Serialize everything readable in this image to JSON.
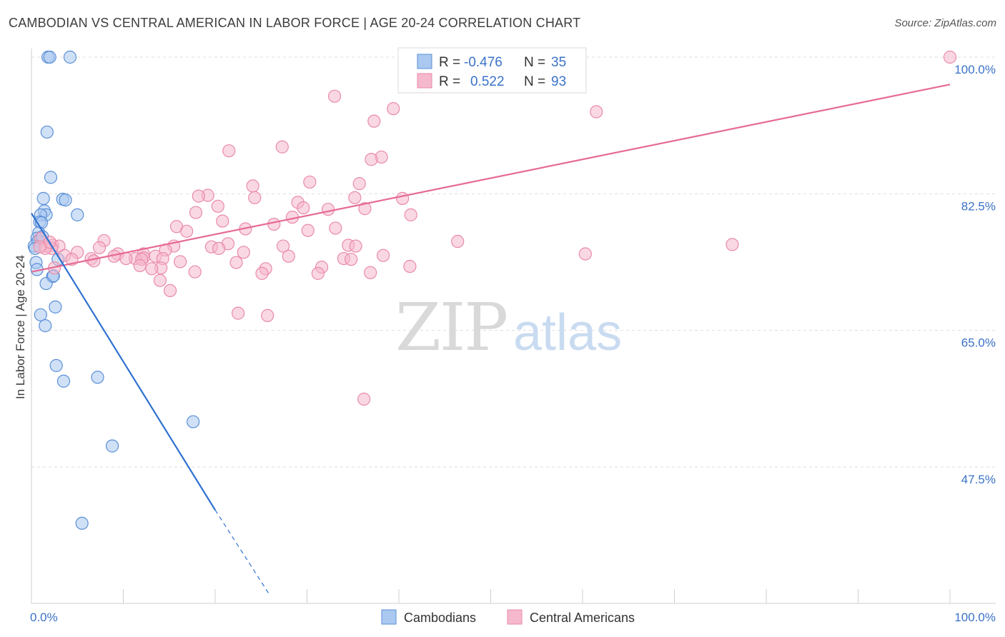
{
  "title": "CAMBODIAN VS CENTRAL AMERICAN IN LABOR FORCE | AGE 20-24 CORRELATION CHART",
  "source": "Source: ZipAtlas.com",
  "watermark": {
    "zip": "ZIP",
    "atlas": "atlas"
  },
  "colors": {
    "cambodians_fill": "#aac8f0",
    "cambodians_stroke": "#5b8fd6",
    "cambodians_line": "#2f72d0",
    "central_fill": "#f5b8cc",
    "central_stroke": "#e98aa9",
    "central_line": "#e66a94",
    "tick_label": "#3a72c8",
    "grid": "#dddddd"
  },
  "legend_stats": {
    "rows": [
      {
        "r_label": "R =",
        "r_value": "-0.476",
        "n_label": "N =",
        "n_value": "35"
      },
      {
        "r_label": "R =",
        "r_value": "0.522",
        "n_label": "N =",
        "n_value": "93"
      }
    ]
  },
  "chart_data": {
    "type": "scatter",
    "title": "CAMBODIAN VS CENTRAL AMERICAN IN LABOR FORCE | AGE 20-24 CORRELATION CHART",
    "xlabel": "",
    "ylabel": "In Labor Force | Age 20-24",
    "xlim": [
      0,
      100
    ],
    "ylim": [
      31,
      101.5
    ],
    "x_tick_labels": [
      "0.0%",
      "100.0%"
    ],
    "y_ticks": [
      47.5,
      65.0,
      82.5,
      100.0
    ],
    "y_tick_labels": [
      "47.5%",
      "65.0%",
      "82.5%",
      "100.0%"
    ],
    "grid": true,
    "legend_position": "bottom-center",
    "series": [
      {
        "name": "Cambodians",
        "r": -0.476,
        "n": 35,
        "trend": {
          "x0": 0.0,
          "y0": 80.0,
          "x1": 20.0,
          "y1": 42.0,
          "dash_x1": 26.0,
          "dash_y1": 31.0
        },
        "points": [
          [
            1.8,
            100
          ],
          [
            2.0,
            100
          ],
          [
            4.2,
            100
          ],
          [
            1.7,
            90.4
          ],
          [
            2.1,
            84.6
          ],
          [
            1.3,
            81.9
          ],
          [
            3.4,
            81.8
          ],
          [
            3.7,
            81.7
          ],
          [
            1.4,
            80.3
          ],
          [
            5.0,
            79.8
          ],
          [
            1.6,
            79.8
          ],
          [
            1.0,
            79.8
          ],
          [
            0.9,
            78.9
          ],
          [
            1.1,
            78.8
          ],
          [
            0.8,
            77.5
          ],
          [
            0.6,
            76.8
          ],
          [
            0.7,
            76.4
          ],
          [
            0.3,
            75.8
          ],
          [
            0.4,
            75.5
          ],
          [
            2.9,
            74.1
          ],
          [
            0.5,
            73.7
          ],
          [
            0.6,
            72.8
          ],
          [
            2.3,
            71.9
          ],
          [
            1.6,
            71.0
          ],
          [
            2.6,
            68.0
          ],
          [
            1.0,
            67.0
          ],
          [
            1.5,
            65.6
          ],
          [
            2.7,
            60.5
          ],
          [
            3.5,
            58.5
          ],
          [
            7.2,
            59.0
          ],
          [
            17.6,
            53.3
          ],
          [
            8.8,
            50.2
          ],
          [
            5.5,
            40.3
          ],
          [
            2.4,
            72.0
          ],
          [
            1.2,
            77.0
          ]
        ]
      },
      {
        "name": "Central Americans",
        "r": 0.522,
        "n": 93,
        "trend": {
          "x0": 0.0,
          "y0": 72.5,
          "x1": 100.0,
          "y1": 96.5
        },
        "points": [
          [
            42.6,
            100
          ],
          [
            56.8,
            100
          ],
          [
            100,
            100
          ],
          [
            45.6,
            96.8
          ],
          [
            33.0,
            95.0
          ],
          [
            39.4,
            93.4
          ],
          [
            61.5,
            93.0
          ],
          [
            37.3,
            91.8
          ],
          [
            27.3,
            88.5
          ],
          [
            21.5,
            88.0
          ],
          [
            38.1,
            87.2
          ],
          [
            37.0,
            86.9
          ],
          [
            30.3,
            84.0
          ],
          [
            35.7,
            83.8
          ],
          [
            24.1,
            83.5
          ],
          [
            19.2,
            82.3
          ],
          [
            18.2,
            82.2
          ],
          [
            24.3,
            82.0
          ],
          [
            35.2,
            82.0
          ],
          [
            40.4,
            81.9
          ],
          [
            29.0,
            81.4
          ],
          [
            20.3,
            80.9
          ],
          [
            29.6,
            80.7
          ],
          [
            32.3,
            80.5
          ],
          [
            36.3,
            80.6
          ],
          [
            17.9,
            80.1
          ],
          [
            41.3,
            79.8
          ],
          [
            28.4,
            79.5
          ],
          [
            20.8,
            79.0
          ],
          [
            26.4,
            78.6
          ],
          [
            15.8,
            78.3
          ],
          [
            33.1,
            78.1
          ],
          [
            23.3,
            78.0
          ],
          [
            16.9,
            77.7
          ],
          [
            30.1,
            77.8
          ],
          [
            7.9,
            76.5
          ],
          [
            46.4,
            76.4
          ],
          [
            21.4,
            76.1
          ],
          [
            76.3,
            76.0
          ],
          [
            34.5,
            75.9
          ],
          [
            2.3,
            75.9
          ],
          [
            3.0,
            75.8
          ],
          [
            27.4,
            75.8
          ],
          [
            35.3,
            75.8
          ],
          [
            19.6,
            75.7
          ],
          [
            15.5,
            75.8
          ],
          [
            7.4,
            75.6
          ],
          [
            1.6,
            75.8
          ],
          [
            20.4,
            75.5
          ],
          [
            2.2,
            75.5
          ],
          [
            14.6,
            75.3
          ],
          [
            23.1,
            75.0
          ],
          [
            5.0,
            75.0
          ],
          [
            9.4,
            74.8
          ],
          [
            12.2,
            74.8
          ],
          [
            3.6,
            74.6
          ],
          [
            38.3,
            74.6
          ],
          [
            13.5,
            74.5
          ],
          [
            28.0,
            74.5
          ],
          [
            9.0,
            74.5
          ],
          [
            12.2,
            74.3
          ],
          [
            11.3,
            74.2
          ],
          [
            34.0,
            74.2
          ],
          [
            10.3,
            74.2
          ],
          [
            14.3,
            74.2
          ],
          [
            12.0,
            74.1
          ],
          [
            34.8,
            74.1
          ],
          [
            4.4,
            74.1
          ],
          [
            60.3,
            74.8
          ],
          [
            6.5,
            74.2
          ],
          [
            6.8,
            73.9
          ],
          [
            16.2,
            73.8
          ],
          [
            22.3,
            73.7
          ],
          [
            11.8,
            73.3
          ],
          [
            31.6,
            73.1
          ],
          [
            14.1,
            73.0
          ],
          [
            25.5,
            72.9
          ],
          [
            13.1,
            72.9
          ],
          [
            41.2,
            73.2
          ],
          [
            17.8,
            72.5
          ],
          [
            36.9,
            72.4
          ],
          [
            25.1,
            72.3
          ],
          [
            31.2,
            72.3
          ],
          [
            14.0,
            71.4
          ],
          [
            15.1,
            70.1
          ],
          [
            22.5,
            67.2
          ],
          [
            25.7,
            66.9
          ],
          [
            36.2,
            56.2
          ],
          [
            1.0,
            76.8
          ],
          [
            1.5,
            75.5
          ],
          [
            2.0,
            76.3
          ],
          [
            0.9,
            75.7
          ],
          [
            2.5,
            73.0
          ]
        ]
      }
    ]
  }
}
